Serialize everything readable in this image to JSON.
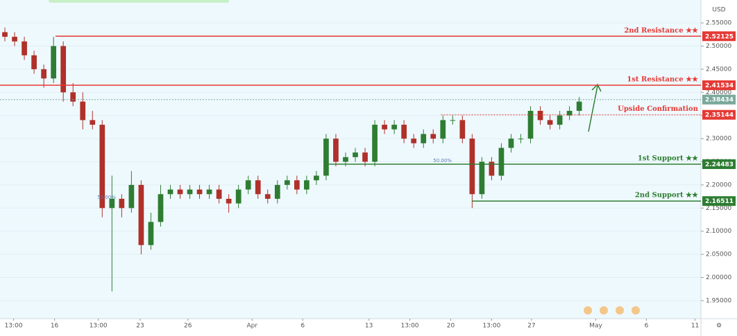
{
  "chart_data": {
    "type": "candlestick",
    "currency": "USD",
    "xlim": [
      0,
      72
    ],
    "ylim": [
      1.911,
      2.592
    ],
    "up_color": "#2e7d32",
    "down_color": "#b0302a",
    "xticks": [
      {
        "value": 1.4,
        "label": "13:00"
      },
      {
        "value": 5.6,
        "label": "16"
      },
      {
        "value": 10.1,
        "label": "13:00"
      },
      {
        "value": 14.4,
        "label": "23"
      },
      {
        "value": 19.3,
        "label": "26"
      },
      {
        "value": 25.9,
        "label": "Apr"
      },
      {
        "value": 31.1,
        "label": "6"
      },
      {
        "value": 37.9,
        "label": "13"
      },
      {
        "value": 42.1,
        "label": "13:00"
      },
      {
        "value": 46.3,
        "label": "20"
      },
      {
        "value": 50.5,
        "label": "13:00"
      },
      {
        "value": 54.6,
        "label": "27"
      },
      {
        "value": 61.2,
        "label": "May"
      },
      {
        "value": 66.4,
        "label": "6"
      },
      {
        "value": 71.4,
        "label": "11"
      }
    ],
    "yticks": [
      {
        "value": 1.95,
        "label": "1.95000"
      },
      {
        "value": 2.0,
        "label": "2.00000"
      },
      {
        "value": 2.05,
        "label": "2.05000"
      },
      {
        "value": 2.1,
        "label": "2.10000"
      },
      {
        "value": 2.15,
        "label": "2.15000"
      },
      {
        "value": 2.2,
        "label": "2.20000"
      },
      {
        "value": 2.25,
        "label": "2.25000"
      },
      {
        "value": 2.3,
        "label": "2.30000"
      },
      {
        "value": 2.35,
        "label": "2.35000"
      },
      {
        "value": 2.4,
        "label": "2.40000"
      },
      {
        "value": 2.45,
        "label": "2.45000"
      },
      {
        "value": 2.5,
        "label": "2.50000"
      },
      {
        "value": 2.55,
        "label": "2.55000"
      }
    ],
    "x": [
      0.5,
      1.5,
      2.5,
      3.5,
      4.5,
      5.5,
      6.5,
      7.5,
      8.5,
      9.5,
      10.5,
      11.5,
      12.5,
      13.5,
      14.5,
      15.5,
      16.5,
      17.5,
      18.5,
      19.5,
      20.5,
      21.5,
      22.5,
      23.5,
      24.5,
      25.5,
      26.5,
      27.5,
      28.5,
      29.5,
      30.5,
      31.5,
      32.5,
      33.5,
      34.5,
      35.5,
      36.5,
      37.5,
      38.5,
      39.5,
      40.5,
      41.5,
      42.5,
      43.5,
      44.5,
      45.5,
      46.5,
      47.5,
      48.5,
      49.5,
      50.5,
      51.5,
      52.5,
      53.5,
      54.5,
      55.5,
      56.5,
      57.5,
      58.5,
      59.5
    ],
    "open": [
      2.53,
      2.52,
      2.51,
      2.48,
      2.45,
      2.43,
      2.5,
      2.4,
      2.38,
      2.34,
      2.33,
      2.15,
      2.17,
      2.15,
      2.2,
      2.07,
      2.12,
      2.18,
      2.19,
      2.18,
      2.19,
      2.18,
      2.19,
      2.17,
      2.16,
      2.19,
      2.21,
      2.18,
      2.17,
      2.2,
      2.21,
      2.19,
      2.21,
      2.22,
      2.3,
      2.25,
      2.26,
      2.27,
      2.25,
      2.33,
      2.32,
      2.33,
      2.3,
      2.29,
      2.31,
      2.3,
      2.34,
      2.34,
      2.3,
      2.18,
      2.25,
      2.22,
      2.28,
      2.3,
      2.3,
      2.36,
      2.34,
      2.33,
      2.35,
      2.36
    ],
    "high": [
      2.54,
      2.53,
      2.52,
      2.49,
      2.46,
      2.52,
      2.51,
      2.42,
      2.4,
      2.36,
      2.34,
      2.22,
      2.18,
      2.23,
      2.21,
      2.14,
      2.2,
      2.2,
      2.2,
      2.2,
      2.2,
      2.2,
      2.2,
      2.18,
      2.2,
      2.22,
      2.22,
      2.19,
      2.21,
      2.22,
      2.22,
      2.22,
      2.23,
      2.31,
      2.31,
      2.27,
      2.28,
      2.28,
      2.34,
      2.34,
      2.34,
      2.34,
      2.31,
      2.32,
      2.32,
      2.35,
      2.35,
      2.35,
      2.31,
      2.26,
      2.26,
      2.29,
      2.31,
      2.31,
      2.37,
      2.37,
      2.35,
      2.36,
      2.37,
      2.39
    ],
    "low": [
      2.51,
      2.5,
      2.47,
      2.44,
      2.41,
      2.42,
      2.38,
      2.37,
      2.32,
      2.32,
      2.13,
      1.97,
      2.13,
      2.14,
      2.05,
      2.06,
      2.11,
      2.17,
      2.17,
      2.17,
      2.17,
      2.17,
      2.16,
      2.14,
      2.15,
      2.18,
      2.17,
      2.16,
      2.16,
      2.19,
      2.18,
      2.18,
      2.2,
      2.21,
      2.24,
      2.24,
      2.25,
      2.24,
      2.24,
      2.31,
      2.31,
      2.29,
      2.28,
      2.28,
      2.29,
      2.29,
      2.33,
      2.29,
      2.15,
      2.17,
      2.21,
      2.21,
      2.27,
      2.29,
      2.29,
      2.33,
      2.32,
      2.32,
      2.34,
      2.35
    ],
    "close": [
      2.52,
      2.51,
      2.48,
      2.45,
      2.43,
      2.5,
      2.4,
      2.38,
      2.34,
      2.33,
      2.15,
      2.17,
      2.15,
      2.2,
      2.07,
      2.12,
      2.18,
      2.19,
      2.18,
      2.19,
      2.18,
      2.19,
      2.17,
      2.16,
      2.19,
      2.21,
      2.18,
      2.17,
      2.2,
      2.21,
      2.19,
      2.21,
      2.22,
      2.3,
      2.25,
      2.26,
      2.27,
      2.25,
      2.33,
      2.32,
      2.33,
      2.3,
      2.29,
      2.31,
      2.3,
      2.34,
      2.34,
      2.3,
      2.18,
      2.25,
      2.22,
      2.28,
      2.3,
      2.3,
      2.36,
      2.34,
      2.33,
      2.35,
      2.36,
      2.38
    ],
    "levels": [
      {
        "name": "2nd Resistance ★★",
        "value": 2.52125,
        "color": "#e53935",
        "style": "solid",
        "start": 5.7
      },
      {
        "name": "1st Resistance ★★",
        "value": 2.41534,
        "color": "#e53935",
        "style": "solid",
        "start": 0
      },
      {
        "value": 2.38434,
        "color": "#7aa89a",
        "style": "dotted",
        "start": 0
      },
      {
        "name": "Upside Confirmation",
        "value": 2.35144,
        "color": "#e53935",
        "style": "dotted",
        "start": 45.3
      },
      {
        "name": "1st Support ★★",
        "value": 2.24483,
        "color": "#2e7d32",
        "style": "solid",
        "start": 33.7,
        "note": "50.00%",
        "note_x": 44.5
      },
      {
        "name": "2nd Support ★★",
        "value": 2.16511,
        "color": "#2e7d32",
        "style": "solid",
        "start": 48.5,
        "note": "50.00%",
        "note_x": 10
      }
    ]
  }
}
